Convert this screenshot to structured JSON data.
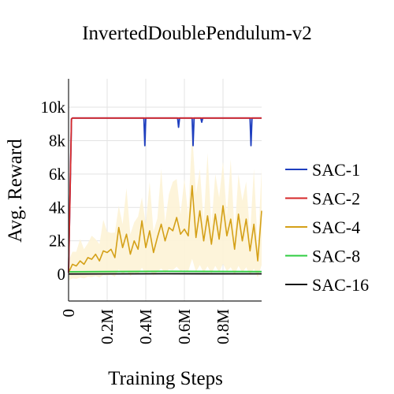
{
  "chart_data": {
    "type": "line",
    "title": "InvertedDoublePendulum-v2",
    "xlabel": "Training Steps",
    "ylabel": "Avg. Reward",
    "xlim": [
      0,
      1.0
    ],
    "ylim": [
      -1600,
      11700
    ],
    "x_unit": "M",
    "x_ticks": [
      0,
      0.2,
      0.4,
      0.6,
      0.8
    ],
    "x_tick_labels": [
      "0",
      "0.2M",
      "0.4M",
      "0.6M",
      "0.8M"
    ],
    "y_ticks": [
      0,
      2000,
      4000,
      6000,
      8000,
      10000
    ],
    "y_tick_labels": [
      "0",
      "2k",
      "4k",
      "6k",
      "8k",
      "10k"
    ],
    "grid": true,
    "legend_position": "right",
    "series": [
      {
        "name": "SAC-1",
        "color": "#1f3fbf",
        "x": [
          0,
          0.015,
          0.02,
          0.39,
          0.395,
          0.4,
          0.405,
          0.565,
          0.57,
          0.575,
          0.64,
          0.645,
          0.65,
          0.655,
          0.685,
          0.69,
          0.695,
          0.94,
          0.945,
          0.95,
          0.955,
          1.0
        ],
        "values": [
          100,
          9300,
          9350,
          9350,
          7700,
          9350,
          9350,
          9350,
          8800,
          9350,
          9350,
          7700,
          9350,
          9350,
          9350,
          9100,
          9350,
          9350,
          7700,
          9350,
          9350,
          9350
        ]
      },
      {
        "name": "SAC-2",
        "color": "#d62728",
        "x": [
          0,
          0.015,
          0.02,
          1.0
        ],
        "values": [
          100,
          9300,
          9350,
          9350
        ]
      },
      {
        "name": "SAC-4",
        "color": "#d4a017",
        "band_color": "#fdf3d6",
        "x": [
          0,
          0.02,
          0.04,
          0.06,
          0.08,
          0.1,
          0.12,
          0.14,
          0.16,
          0.18,
          0.2,
          0.22,
          0.24,
          0.26,
          0.28,
          0.3,
          0.32,
          0.34,
          0.36,
          0.38,
          0.4,
          0.42,
          0.44,
          0.46,
          0.48,
          0.5,
          0.52,
          0.54,
          0.56,
          0.58,
          0.6,
          0.62,
          0.64,
          0.66,
          0.68,
          0.7,
          0.72,
          0.74,
          0.76,
          0.78,
          0.8,
          0.82,
          0.84,
          0.86,
          0.88,
          0.9,
          0.92,
          0.94,
          0.96,
          0.98,
          1.0
        ],
        "values": [
          100,
          600,
          500,
          800,
          600,
          1000,
          900,
          1200,
          800,
          1400,
          1300,
          1500,
          1000,
          2800,
          1600,
          2400,
          1200,
          2000,
          1500,
          3200,
          1600,
          2600,
          1300,
          2200,
          3000,
          2000,
          2800,
          2600,
          3400,
          2400,
          2700,
          2300,
          5300,
          2200,
          3800,
          2000,
          3500,
          1800,
          3600,
          2100,
          4100,
          2300,
          3300,
          1500,
          3600,
          2000,
          3300,
          1400,
          3000,
          800,
          3800
        ]
      },
      {
        "name": "SAC-8",
        "color": "#2ecc40",
        "x": [
          0,
          0.5,
          1.0
        ],
        "values": [
          150,
          180,
          160
        ]
      },
      {
        "name": "SAC-16",
        "color": "#111111",
        "x": [
          0,
          0.5,
          1.0
        ],
        "values": [
          20,
          30,
          25
        ]
      }
    ]
  }
}
